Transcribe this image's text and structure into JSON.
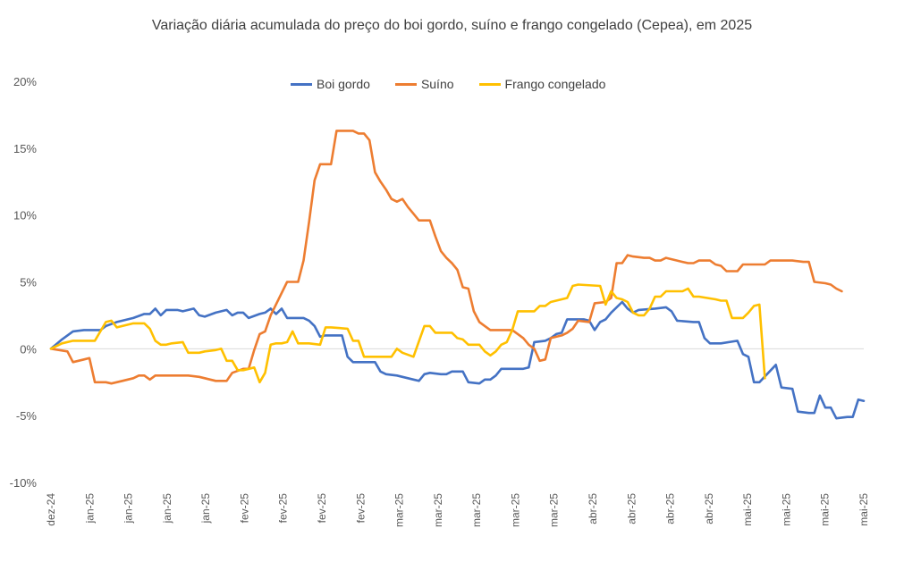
{
  "chart_data": {
    "type": "line",
    "title": "Variação diária acumulada do preço do boi gordo, suíno e frango congelado (Cepea), em 2025",
    "xlabel": "",
    "ylabel": "",
    "ylim": [
      -10,
      20
    ],
    "yticks": [
      20,
      15,
      10,
      5,
      0,
      -5,
      -10
    ],
    "ytick_labels": [
      "20%",
      "15%",
      "10%",
      "5%",
      "0%",
      "-5%",
      "-10%"
    ],
    "x_tick_labels": [
      "dez-24",
      "jan-25",
      "jan-25",
      "jan-25",
      "jan-25",
      "fev-25",
      "fev-25",
      "fev-25",
      "fev-25",
      "mar-25",
      "mar-25",
      "mar-25",
      "mar-25",
      "mar-25",
      "abr-25",
      "abr-25",
      "abr-25",
      "abr-25",
      "mai-25",
      "mai-25",
      "mai-25",
      "mai-25"
    ],
    "n_points": 105,
    "legend_position": "top",
    "series": [
      {
        "name": "Boi gordo",
        "color": "#4472C4",
        "points": [
          [
            0,
            0
          ],
          [
            2,
            0.7
          ],
          [
            4,
            1.3
          ],
          [
            6,
            1.4
          ],
          [
            9,
            1.4
          ],
          [
            10,
            1.7
          ],
          [
            12,
            2
          ],
          [
            15,
            2.3
          ],
          [
            17,
            2.6
          ],
          [
            18,
            2.6
          ],
          [
            19,
            3
          ],
          [
            20,
            2.5
          ],
          [
            21,
            2.9
          ],
          [
            23,
            2.9
          ],
          [
            24,
            2.8
          ],
          [
            25,
            2.9
          ],
          [
            26,
            3
          ],
          [
            27,
            2.5
          ],
          [
            28,
            2.4
          ],
          [
            30,
            2.7
          ],
          [
            32,
            2.9
          ],
          [
            33,
            2.5
          ],
          [
            34,
            2.7
          ],
          [
            35,
            2.7
          ],
          [
            36,
            2.3
          ],
          [
            38,
            2.6
          ],
          [
            39,
            2.7
          ],
          [
            40,
            3
          ],
          [
            41,
            2.6
          ],
          [
            42,
            3
          ],
          [
            43,
            2.3
          ],
          [
            46,
            2.3
          ],
          [
            47,
            2.1
          ],
          [
            48,
            1.7
          ],
          [
            49,
            0.9
          ],
          [
            50,
            1
          ],
          [
            53,
            1
          ],
          [
            54,
            -0.6
          ],
          [
            55,
            -1
          ],
          [
            58,
            -1
          ],
          [
            59,
            -1
          ],
          [
            60,
            -1.7
          ],
          [
            61,
            -1.9
          ],
          [
            63,
            -2
          ],
          [
            66,
            -2.3
          ],
          [
            67,
            -2.4
          ],
          [
            68,
            -1.9
          ],
          [
            69,
            -1.8
          ],
          [
            71,
            -1.9
          ],
          [
            72,
            -1.9
          ],
          [
            73,
            -1.7
          ],
          [
            75,
            -1.7
          ],
          [
            76,
            -2.5
          ],
          [
            78,
            -2.6
          ],
          [
            79,
            -2.3
          ],
          [
            80,
            -2.3
          ],
          [
            81,
            -2
          ],
          [
            82,
            -1.5
          ],
          [
            84,
            -1.5
          ],
          [
            86,
            -1.5
          ],
          [
            87,
            -1.4
          ],
          [
            88,
            0.5
          ],
          [
            90,
            0.6
          ],
          [
            91,
            0.8
          ],
          [
            92,
            1.1
          ],
          [
            93,
            1.2
          ],
          [
            94,
            2.2
          ],
          [
            96,
            2.2
          ],
          [
            97,
            2.2
          ],
          [
            98,
            2.1
          ],
          [
            99,
            1.4
          ],
          [
            100,
            2
          ],
          [
            101,
            2.2
          ],
          [
            102,
            2.7
          ],
          [
            104,
            3.5
          ],
          [
            105,
            3
          ],
          [
            106,
            2.7
          ],
          [
            107,
            2.9
          ],
          [
            110,
            3
          ],
          [
            112,
            3.1
          ],
          [
            113,
            2.8
          ],
          [
            114,
            2.1
          ],
          [
            117,
            2
          ],
          [
            118,
            2
          ],
          [
            119,
            0.8
          ],
          [
            120,
            0.4
          ],
          [
            122,
            0.4
          ],
          [
            125,
            0.6
          ],
          [
            126,
            -0.4
          ],
          [
            127,
            -0.6
          ],
          [
            128,
            -2.5
          ],
          [
            129,
            -2.5
          ],
          [
            132,
            -1.2
          ],
          [
            133,
            -2.9
          ],
          [
            135,
            -3
          ],
          [
            136,
            -4.7
          ],
          [
            138,
            -4.8
          ],
          [
            139,
            -4.8
          ],
          [
            140,
            -3.5
          ],
          [
            141,
            -4.4
          ],
          [
            142,
            -4.4
          ],
          [
            143,
            -5.2
          ],
          [
            145,
            -5.1
          ],
          [
            146,
            -5.1
          ],
          [
            147,
            -3.8
          ],
          [
            148,
            -3.9
          ]
        ]
      },
      {
        "name": "Suíno",
        "color": "#ED7D31",
        "points": [
          [
            0,
            0
          ],
          [
            3,
            -0.2
          ],
          [
            4,
            -1
          ],
          [
            6,
            -0.8
          ],
          [
            7,
            -0.7
          ],
          [
            8,
            -2.5
          ],
          [
            10,
            -2.5
          ],
          [
            11,
            -2.6
          ],
          [
            13,
            -2.4
          ],
          [
            15,
            -2.2
          ],
          [
            16,
            -2
          ],
          [
            17,
            -2
          ],
          [
            18,
            -2.3
          ],
          [
            19,
            -2
          ],
          [
            22,
            -2
          ],
          [
            25,
            -2
          ],
          [
            27,
            -2.1
          ],
          [
            29,
            -2.3
          ],
          [
            30,
            -2.4
          ],
          [
            32,
            -2.4
          ],
          [
            33,
            -1.8
          ],
          [
            35,
            -1.5
          ],
          [
            36,
            -1.5
          ],
          [
            37,
            -0.1
          ],
          [
            38,
            1.1
          ],
          [
            39,
            1.3
          ],
          [
            40,
            2.5
          ],
          [
            43,
            5
          ],
          [
            45,
            5
          ],
          [
            46,
            6.6
          ],
          [
            47,
            9.5
          ],
          [
            48,
            12.6
          ],
          [
            49,
            13.8
          ],
          [
            51,
            13.8
          ],
          [
            52,
            16.3
          ],
          [
            55,
            16.3
          ],
          [
            56,
            16.1
          ],
          [
            57,
            16.1
          ],
          [
            58,
            15.6
          ],
          [
            59,
            13.2
          ],
          [
            60,
            12.5
          ],
          [
            61,
            11.9
          ],
          [
            62,
            11.2
          ],
          [
            63,
            11
          ],
          [
            64,
            11.2
          ],
          [
            65,
            10.6
          ],
          [
            66,
            10.1
          ],
          [
            67,
            9.6
          ],
          [
            69,
            9.6
          ],
          [
            70,
            8.4
          ],
          [
            71,
            7.3
          ],
          [
            72,
            6.8
          ],
          [
            73,
            6.4
          ],
          [
            74,
            5.9
          ],
          [
            75,
            4.6
          ],
          [
            76,
            4.5
          ],
          [
            77,
            2.8
          ],
          [
            78,
            2
          ],
          [
            79,
            1.7
          ],
          [
            80,
            1.4
          ],
          [
            84,
            1.4
          ],
          [
            85,
            1.1
          ],
          [
            86,
            0.8
          ],
          [
            87,
            0.3
          ],
          [
            88,
            0
          ],
          [
            89,
            -0.9
          ],
          [
            90,
            -0.8
          ],
          [
            91,
            0.8
          ],
          [
            93,
            1
          ],
          [
            94,
            1.2
          ],
          [
            95,
            1.5
          ],
          [
            96,
            2.1
          ],
          [
            98,
            2
          ],
          [
            99,
            3.4
          ],
          [
            101,
            3.5
          ],
          [
            102,
            3.8
          ],
          [
            103,
            6.4
          ],
          [
            104,
            6.4
          ],
          [
            105,
            7
          ],
          [
            106,
            6.9
          ],
          [
            108,
            6.8
          ],
          [
            109,
            6.8
          ],
          [
            110,
            6.6
          ],
          [
            111,
            6.6
          ],
          [
            112,
            6.8
          ],
          [
            113,
            6.7
          ],
          [
            114,
            6.6
          ],
          [
            115,
            6.5
          ],
          [
            116,
            6.4
          ],
          [
            117,
            6.4
          ],
          [
            118,
            6.6
          ],
          [
            119,
            6.6
          ],
          [
            120,
            6.6
          ],
          [
            121,
            6.3
          ],
          [
            122,
            6.2
          ],
          [
            123,
            5.8
          ],
          [
            125,
            5.8
          ],
          [
            126,
            6.3
          ],
          [
            127,
            6.3
          ],
          [
            130,
            6.3
          ],
          [
            131,
            6.6
          ],
          [
            135,
            6.6
          ],
          [
            137,
            6.5
          ],
          [
            138,
            6.5
          ],
          [
            139,
            5
          ],
          [
            141,
            4.9
          ],
          [
            142,
            4.8
          ],
          [
            143,
            4.5
          ],
          [
            144,
            4.3
          ]
        ]
      },
      {
        "name": "Frango congelado",
        "color": "#FFC000",
        "points": [
          [
            0,
            0
          ],
          [
            2,
            0.4
          ],
          [
            4,
            0.6
          ],
          [
            6,
            0.6
          ],
          [
            8,
            0.6
          ],
          [
            10,
            2
          ],
          [
            11,
            2.1
          ],
          [
            12,
            1.6
          ],
          [
            13,
            1.7
          ],
          [
            15,
            1.9
          ],
          [
            17,
            1.9
          ],
          [
            18,
            1.5
          ],
          [
            19,
            0.6
          ],
          [
            20,
            0.3
          ],
          [
            21,
            0.3
          ],
          [
            22,
            0.4
          ],
          [
            24,
            0.5
          ],
          [
            25,
            -0.3
          ],
          [
            27,
            -0.3
          ],
          [
            28,
            -0.2
          ],
          [
            30,
            -0.1
          ],
          [
            31,
            0
          ],
          [
            32,
            -0.9
          ],
          [
            33,
            -0.9
          ],
          [
            34,
            -1.6
          ],
          [
            35,
            -1.6
          ],
          [
            37,
            -1.4
          ],
          [
            38,
            -2.5
          ],
          [
            39,
            -1.8
          ],
          [
            40,
            0.3
          ],
          [
            41,
            0.4
          ],
          [
            42,
            0.4
          ],
          [
            43,
            0.5
          ],
          [
            44,
            1.3
          ],
          [
            45,
            0.4
          ],
          [
            47,
            0.4
          ],
          [
            49,
            0.3
          ],
          [
            50,
            1.6
          ],
          [
            51,
            1.6
          ],
          [
            54,
            1.5
          ],
          [
            55,
            0.6
          ],
          [
            56,
            0.6
          ],
          [
            57,
            -0.6
          ],
          [
            61,
            -0.6
          ],
          [
            62,
            -0.6
          ],
          [
            63,
            0
          ],
          [
            64,
            -0.3
          ],
          [
            66,
            -0.6
          ],
          [
            68,
            1.7
          ],
          [
            69,
            1.7
          ],
          [
            70,
            1.2
          ],
          [
            73,
            1.2
          ],
          [
            74,
            0.8
          ],
          [
            75,
            0.7
          ],
          [
            76,
            0.3
          ],
          [
            78,
            0.3
          ],
          [
            79,
            -0.2
          ],
          [
            80,
            -0.5
          ],
          [
            81,
            -0.2
          ],
          [
            82,
            0.3
          ],
          [
            83,
            0.5
          ],
          [
            84,
            1.4
          ],
          [
            85,
            2.8
          ],
          [
            87,
            2.8
          ],
          [
            88,
            2.8
          ],
          [
            89,
            3.2
          ],
          [
            90,
            3.2
          ],
          [
            91,
            3.5
          ],
          [
            93,
            3.7
          ],
          [
            94,
            3.8
          ],
          [
            95,
            4.7
          ],
          [
            96,
            4.8
          ],
          [
            100,
            4.7
          ],
          [
            101,
            3.3
          ],
          [
            102,
            4.3
          ],
          [
            103,
            3.8
          ],
          [
            104,
            3.7
          ],
          [
            105,
            3.5
          ],
          [
            106,
            2.7
          ],
          [
            107,
            2.5
          ],
          [
            108,
            2.5
          ],
          [
            109,
            3
          ],
          [
            110,
            3.9
          ],
          [
            111,
            3.9
          ],
          [
            112,
            4.3
          ],
          [
            114,
            4.3
          ],
          [
            115,
            4.3
          ],
          [
            116,
            4.5
          ],
          [
            117,
            3.9
          ],
          [
            118,
            3.9
          ],
          [
            121,
            3.7
          ],
          [
            122,
            3.6
          ],
          [
            123,
            3.6
          ],
          [
            124,
            2.3
          ],
          [
            126,
            2.3
          ],
          [
            127,
            2.7
          ],
          [
            128,
            3.2
          ],
          [
            129,
            3.3
          ],
          [
            130,
            -2.2
          ]
        ]
      }
    ]
  }
}
